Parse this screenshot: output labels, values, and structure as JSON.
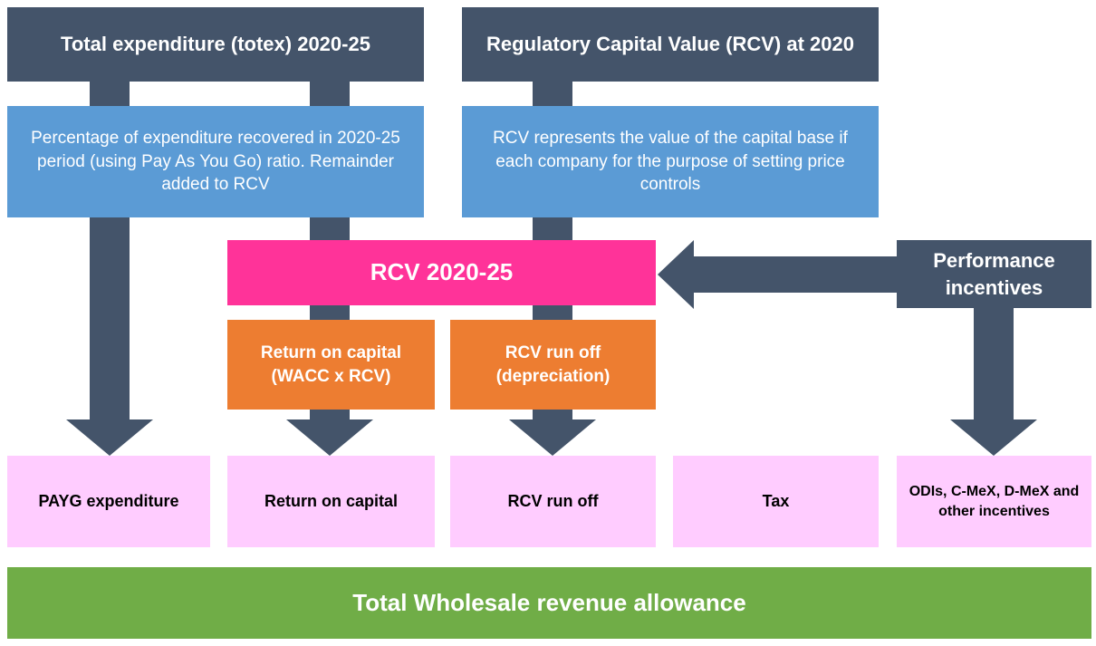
{
  "nodes": {
    "totex": {
      "label": "Total expenditure (totex) 2020-25"
    },
    "rcv2020": {
      "label": "Regulatory Capital Value (RCV) at 2020"
    },
    "totex_note": {
      "label": "Percentage of expenditure recovered in 2020-25 period (using Pay As You Go) ratio. Remainder added to RCV"
    },
    "rcv_note": {
      "label": "RCV represents the value of the capital base if each company for the purpose of setting price controls"
    },
    "rcv_period": {
      "label": "RCV 2020-25"
    },
    "performance": {
      "label": "Performance incentives"
    },
    "return_calc": {
      "label": "Return on capital (WACC x RCV)"
    },
    "runoff_calc": {
      "label": "RCV run off (depreciation)"
    },
    "paygo": {
      "label": "PAYG expenditure"
    },
    "return": {
      "label": "Return on capital"
    },
    "runoff": {
      "label": "RCV run off"
    },
    "tax": {
      "label": "Tax"
    },
    "incentives": {
      "label": "ODIs, C-MeX, D-MeX and other incentives"
    },
    "total": {
      "label": "Total Wholesale revenue allowance"
    }
  }
}
